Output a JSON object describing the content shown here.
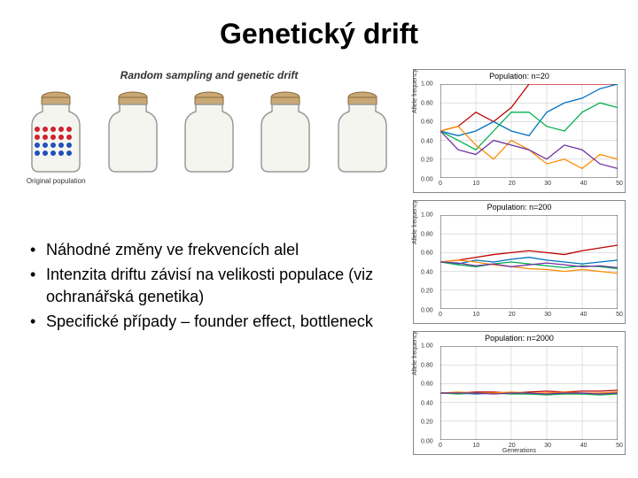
{
  "title": "Genetický drift",
  "jars_panel": {
    "header": "Random sampling and genetic drift",
    "jars": [
      {
        "caption": "Original population",
        "dots": {
          "red": 10,
          "blue": 10
        }
      },
      {
        "caption": "",
        "dots": {
          "red": 0,
          "blue": 0
        }
      },
      {
        "caption": "",
        "dots": {
          "red": 0,
          "blue": 0
        }
      },
      {
        "caption": "",
        "dots": {
          "red": 0,
          "blue": 0
        }
      },
      {
        "caption": "",
        "dots": {
          "red": 0,
          "blue": 0
        }
      }
    ],
    "jar_colors": {
      "glass_fill": "#f5f5f0",
      "glass_stroke": "#999999",
      "cork": "#c9a876",
      "red_dot": "#d02030",
      "blue_dot": "#2050c0"
    }
  },
  "bullets": [
    "Náhodné změny ve frekvencích alel",
    "Intenzita driftu závisí na velikosti populace (viz ochranářská genetika)",
    "Specifické případy – founder effect, bottleneck"
  ],
  "charts": {
    "line_colors": [
      "#c00000",
      "#0070c0",
      "#00b050",
      "#ff8c00",
      "#7030a0"
    ],
    "grid_color": "#bfbfbf",
    "axis_color": "#404040",
    "background": "#ffffff",
    "ylabel": "Allele frequency",
    "xlabel": "Generations",
    "yticks": [
      0.0,
      0.2,
      0.4,
      0.6,
      0.8,
      1.0
    ],
    "xticks": [
      0,
      10,
      20,
      30,
      40,
      50
    ],
    "xlim": [
      0,
      50
    ],
    "ylim": [
      0,
      1
    ],
    "panels": [
      {
        "title": "Population: n=20",
        "series": [
          [
            0.5,
            0.55,
            0.7,
            0.6,
            0.75,
            1.0,
            1.0,
            1.0,
            1.0,
            1.0,
            1.0
          ],
          [
            0.5,
            0.45,
            0.5,
            0.6,
            0.5,
            0.45,
            0.7,
            0.8,
            0.85,
            0.95,
            1.0
          ],
          [
            0.5,
            0.4,
            0.3,
            0.5,
            0.7,
            0.7,
            0.55,
            0.5,
            0.7,
            0.8,
            0.75
          ],
          [
            0.5,
            0.55,
            0.35,
            0.2,
            0.4,
            0.3,
            0.15,
            0.2,
            0.1,
            0.25,
            0.2
          ],
          [
            0.5,
            0.3,
            0.25,
            0.4,
            0.35,
            0.3,
            0.2,
            0.35,
            0.3,
            0.15,
            0.1
          ]
        ]
      },
      {
        "title": "Population: n=200",
        "series": [
          [
            0.5,
            0.52,
            0.55,
            0.58,
            0.6,
            0.62,
            0.6,
            0.58,
            0.62,
            0.65,
            0.68
          ],
          [
            0.5,
            0.48,
            0.52,
            0.5,
            0.53,
            0.55,
            0.52,
            0.5,
            0.48,
            0.5,
            0.52
          ],
          [
            0.5,
            0.47,
            0.45,
            0.48,
            0.5,
            0.48,
            0.46,
            0.44,
            0.46,
            0.45,
            0.43
          ],
          [
            0.5,
            0.52,
            0.5,
            0.47,
            0.45,
            0.43,
            0.42,
            0.4,
            0.42,
            0.4,
            0.38
          ],
          [
            0.5,
            0.49,
            0.46,
            0.48,
            0.45,
            0.47,
            0.49,
            0.47,
            0.45,
            0.46,
            0.44
          ]
        ]
      },
      {
        "title": "Population: n=2000",
        "series": [
          [
            0.5,
            0.5,
            0.51,
            0.51,
            0.5,
            0.51,
            0.52,
            0.51,
            0.52,
            0.52,
            0.53
          ],
          [
            0.5,
            0.5,
            0.49,
            0.5,
            0.5,
            0.49,
            0.5,
            0.5,
            0.49,
            0.5,
            0.5
          ],
          [
            0.5,
            0.49,
            0.5,
            0.5,
            0.49,
            0.49,
            0.48,
            0.49,
            0.49,
            0.48,
            0.49
          ],
          [
            0.5,
            0.51,
            0.5,
            0.5,
            0.51,
            0.5,
            0.5,
            0.51,
            0.5,
            0.5,
            0.51
          ],
          [
            0.5,
            0.5,
            0.5,
            0.49,
            0.5,
            0.5,
            0.49,
            0.5,
            0.5,
            0.49,
            0.5
          ]
        ]
      }
    ]
  }
}
